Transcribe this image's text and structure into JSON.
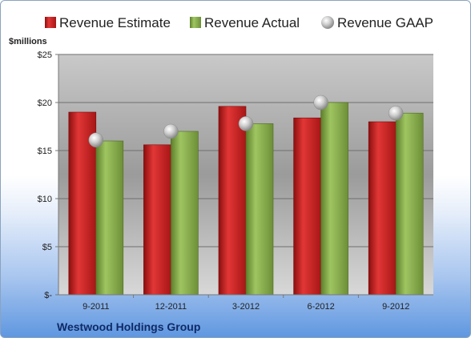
{
  "chart_data": {
    "type": "bar",
    "unit_label": "$millions",
    "company": "Westwood Holdings Group",
    "categories": [
      "9-2011",
      "12-2011",
      "3-2012",
      "6-2012",
      "9-2012"
    ],
    "series": [
      {
        "name": "Revenue Estimate",
        "kind": "bar",
        "color": "#d42a2a",
        "values": [
          19.0,
          15.6,
          19.6,
          18.4,
          18.0
        ]
      },
      {
        "name": "Revenue Actual",
        "kind": "bar",
        "color": "#8db352",
        "values": [
          16.0,
          17.0,
          17.8,
          20.0,
          18.9
        ]
      },
      {
        "name": "Revenue GAAP",
        "kind": "marker",
        "color": "#b9b9b9",
        "values": [
          16.1,
          17.0,
          17.8,
          20.0,
          18.9
        ]
      }
    ],
    "yticks": [
      {
        "value": 0,
        "label": "$-"
      },
      {
        "value": 5,
        "label": "$5"
      },
      {
        "value": 10,
        "label": "$10"
      },
      {
        "value": 15,
        "label": "$15"
      },
      {
        "value": 20,
        "label": "$20"
      },
      {
        "value": 25,
        "label": "$25"
      }
    ],
    "ylim": [
      0,
      25
    ],
    "grid": true,
    "legend_position": "top"
  }
}
